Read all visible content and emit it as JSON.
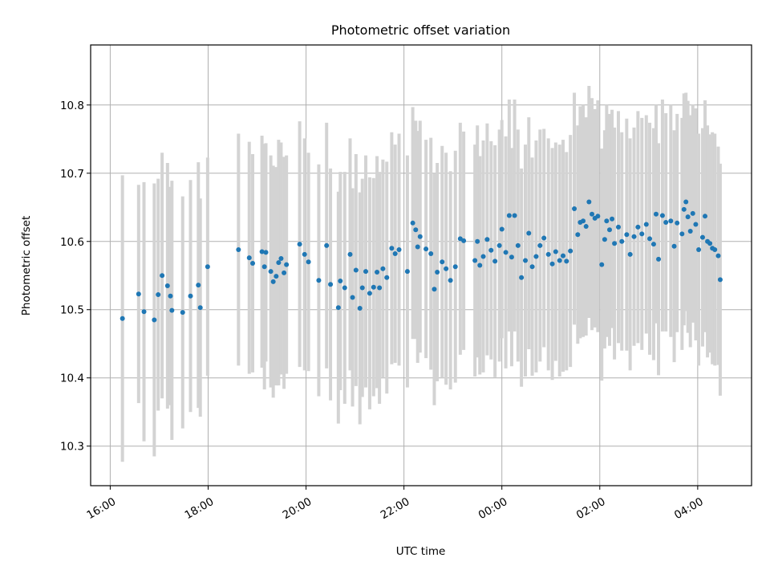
{
  "chart_data": {
    "type": "scatter",
    "title": "Photometric offset variation",
    "xlabel": "UTC time",
    "ylabel": "Photometric offset",
    "x_unit": "UTC time (hours; values of 24 and above fall after midnight on the following day)",
    "x_range": [
      15.6,
      29.1
    ],
    "ylim": [
      10.242,
      10.888
    ],
    "x_ticks": [
      {
        "value": 16,
        "label": "16:00"
      },
      {
        "value": 18,
        "label": "18:00"
      },
      {
        "value": 20,
        "label": "20:00"
      },
      {
        "value": 22,
        "label": "22:00"
      },
      {
        "value": 24,
        "label": "00:00"
      },
      {
        "value": 26,
        "label": "02:00"
      },
      {
        "value": 28,
        "label": "04:00"
      }
    ],
    "y_ticks": [
      {
        "value": 10.3,
        "label": "10.3"
      },
      {
        "value": 10.4,
        "label": "10.4"
      },
      {
        "value": 10.5,
        "label": "10.5"
      },
      {
        "value": 10.6,
        "label": "10.6"
      },
      {
        "value": 10.7,
        "label": "10.7"
      },
      {
        "value": 10.8,
        "label": "10.8"
      }
    ],
    "grid": true,
    "legend": "none",
    "colors": {
      "points": "#1f77b4",
      "error_bars": "#d3d3d3",
      "grid": "#b0b0b0"
    },
    "series": [
      {
        "points": [
          [
            16.25,
            10.487,
            0.21
          ],
          [
            16.58,
            10.523,
            0.16
          ],
          [
            16.69,
            10.497,
            0.19
          ],
          [
            16.9,
            10.485,
            0.2
          ],
          [
            16.98,
            10.522,
            0.17
          ],
          [
            17.06,
            10.55,
            0.18
          ],
          [
            17.17,
            10.535,
            0.18
          ],
          [
            17.23,
            10.52,
            0.16
          ],
          [
            17.26,
            10.499,
            0.19
          ],
          [
            17.48,
            10.496,
            0.17
          ],
          [
            17.64,
            10.52,
            0.17
          ],
          [
            17.8,
            10.536,
            0.18
          ],
          [
            17.84,
            10.503,
            0.16
          ],
          [
            17.99,
            10.563,
            0.16
          ],
          [
            18.62,
            10.588,
            0.17
          ],
          [
            18.84,
            10.576,
            0.17
          ],
          [
            18.91,
            10.568,
            0.16
          ],
          [
            19.1,
            10.585,
            0.17
          ],
          [
            19.15,
            10.563,
            0.18
          ],
          [
            19.18,
            10.584,
            0.16
          ],
          [
            19.28,
            10.556,
            0.17
          ],
          [
            19.33,
            10.541,
            0.17
          ],
          [
            19.39,
            10.549,
            0.16
          ],
          [
            19.44,
            10.569,
            0.18
          ],
          [
            19.49,
            10.575,
            0.17
          ],
          [
            19.55,
            10.554,
            0.17
          ],
          [
            19.6,
            10.566,
            0.16
          ],
          [
            19.87,
            10.596,
            0.18
          ],
          [
            19.97,
            10.581,
            0.17
          ],
          [
            20.05,
            10.57,
            0.16
          ],
          [
            20.26,
            10.543,
            0.17
          ],
          [
            20.42,
            10.594,
            0.18
          ],
          [
            20.5,
            10.537,
            0.17
          ],
          [
            20.66,
            10.503,
            0.17
          ],
          [
            20.7,
            10.542,
            0.16
          ],
          [
            20.79,
            10.532,
            0.17
          ],
          [
            20.9,
            10.581,
            0.17
          ],
          [
            20.95,
            10.518,
            0.16
          ],
          [
            21.02,
            10.558,
            0.17
          ],
          [
            21.1,
            10.502,
            0.17
          ],
          [
            21.15,
            10.532,
            0.16
          ],
          [
            21.22,
            10.556,
            0.17
          ],
          [
            21.3,
            10.524,
            0.17
          ],
          [
            21.38,
            10.533,
            0.16
          ],
          [
            21.45,
            10.555,
            0.17
          ],
          [
            21.5,
            10.532,
            0.17
          ],
          [
            21.57,
            10.56,
            0.16
          ],
          [
            21.65,
            10.547,
            0.17
          ],
          [
            21.75,
            10.59,
            0.17
          ],
          [
            21.82,
            10.582,
            0.16
          ],
          [
            21.9,
            10.588,
            0.17
          ],
          [
            22.07,
            10.556,
            0.17
          ],
          [
            22.18,
            10.627,
            0.17
          ],
          [
            22.24,
            10.617,
            0.16
          ],
          [
            22.28,
            10.592,
            0.17
          ],
          [
            22.33,
            10.607,
            0.17
          ],
          [
            22.45,
            10.589,
            0.16
          ],
          [
            22.55,
            10.582,
            0.17
          ],
          [
            22.62,
            10.53,
            0.17
          ],
          [
            22.68,
            10.555,
            0.16
          ],
          [
            22.78,
            10.57,
            0.17
          ],
          [
            22.86,
            10.56,
            0.17
          ],
          [
            22.95,
            10.543,
            0.16
          ],
          [
            23.05,
            10.563,
            0.17
          ],
          [
            23.15,
            10.604,
            0.17
          ],
          [
            23.22,
            10.601,
            0.16
          ],
          [
            23.45,
            10.572,
            0.17
          ],
          [
            23.5,
            10.6,
            0.17
          ],
          [
            23.55,
            10.565,
            0.16
          ],
          [
            23.62,
            10.578,
            0.17
          ],
          [
            23.7,
            10.603,
            0.17
          ],
          [
            23.78,
            10.587,
            0.16
          ],
          [
            23.86,
            10.571,
            0.17
          ],
          [
            23.95,
            10.594,
            0.17
          ],
          [
            24.0,
            10.618,
            0.16
          ],
          [
            24.08,
            10.584,
            0.17
          ],
          [
            24.15,
            10.638,
            0.17
          ],
          [
            24.2,
            10.577,
            0.16
          ],
          [
            24.26,
            10.638,
            0.17
          ],
          [
            24.33,
            10.594,
            0.17
          ],
          [
            24.4,
            10.547,
            0.16
          ],
          [
            24.48,
            10.572,
            0.17
          ],
          [
            24.55,
            10.612,
            0.17
          ],
          [
            24.62,
            10.563,
            0.16
          ],
          [
            24.7,
            10.578,
            0.17
          ],
          [
            24.78,
            10.594,
            0.17
          ],
          [
            24.86,
            10.605,
            0.16
          ],
          [
            24.95,
            10.581,
            0.17
          ],
          [
            25.03,
            10.567,
            0.17
          ],
          [
            25.1,
            10.585,
            0.16
          ],
          [
            25.18,
            10.572,
            0.17
          ],
          [
            25.25,
            10.579,
            0.17
          ],
          [
            25.32,
            10.571,
            0.16
          ],
          [
            25.4,
            10.586,
            0.17
          ],
          [
            25.48,
            10.648,
            0.17
          ],
          [
            25.55,
            10.61,
            0.16
          ],
          [
            25.6,
            10.628,
            0.17
          ],
          [
            25.66,
            10.63,
            0.17
          ],
          [
            25.72,
            10.622,
            0.16
          ],
          [
            25.78,
            10.658,
            0.17
          ],
          [
            25.84,
            10.64,
            0.17
          ],
          [
            25.9,
            10.634,
            0.16
          ],
          [
            25.96,
            10.637,
            0.17
          ],
          [
            26.04,
            10.566,
            0.17
          ],
          [
            26.1,
            10.603,
            0.16
          ],
          [
            26.14,
            10.63,
            0.17
          ],
          [
            26.2,
            10.617,
            0.17
          ],
          [
            26.25,
            10.633,
            0.16
          ],
          [
            26.3,
            10.597,
            0.17
          ],
          [
            26.38,
            10.621,
            0.17
          ],
          [
            26.45,
            10.6,
            0.16
          ],
          [
            26.55,
            10.61,
            0.17
          ],
          [
            26.62,
            10.581,
            0.17
          ],
          [
            26.7,
            10.607,
            0.16
          ],
          [
            26.78,
            10.621,
            0.17
          ],
          [
            26.86,
            10.611,
            0.17
          ],
          [
            26.95,
            10.625,
            0.16
          ],
          [
            27.02,
            10.604,
            0.17
          ],
          [
            27.1,
            10.596,
            0.17
          ],
          [
            27.15,
            10.64,
            0.16
          ],
          [
            27.2,
            10.574,
            0.17
          ],
          [
            27.28,
            10.638,
            0.17
          ],
          [
            27.35,
            10.628,
            0.16
          ],
          [
            27.45,
            10.63,
            0.17
          ],
          [
            27.52,
            10.593,
            0.17
          ],
          [
            27.58,
            10.627,
            0.16
          ],
          [
            27.68,
            10.611,
            0.17
          ],
          [
            27.72,
            10.647,
            0.17
          ],
          [
            27.76,
            10.658,
            0.16
          ],
          [
            27.8,
            10.636,
            0.17
          ],
          [
            27.85,
            10.615,
            0.17
          ],
          [
            27.9,
            10.641,
            0.16
          ],
          [
            27.96,
            10.625,
            0.17
          ],
          [
            28.02,
            10.588,
            0.17
          ],
          [
            28.1,
            10.606,
            0.16
          ],
          [
            28.15,
            10.637,
            0.17
          ],
          [
            28.2,
            10.6,
            0.17
          ],
          [
            28.25,
            10.597,
            0.16
          ],
          [
            28.3,
            10.59,
            0.17
          ],
          [
            28.35,
            10.588,
            0.17
          ],
          [
            28.42,
            10.579,
            0.16
          ],
          [
            28.46,
            10.544,
            0.17
          ]
        ]
      }
    ]
  }
}
